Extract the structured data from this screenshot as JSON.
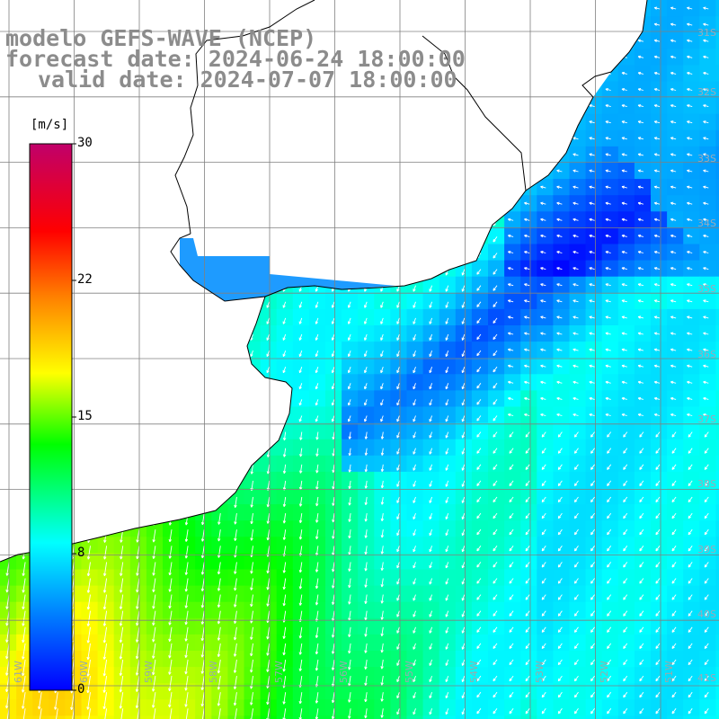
{
  "titles": {
    "line1": "modelo GEFS-WAVE (NCEP)",
    "line2": "forecast date: 2024-06-24 18:00:00",
    "line3": "valid date: 2024-07-07 18:00:00"
  },
  "colorbar": {
    "unit": "[m/s]",
    "ticks": [
      "30",
      "22",
      "15",
      "8",
      "0"
    ],
    "colors": [
      "#0000ff",
      "#00bfff",
      "#00ffff",
      "#00ff00",
      "#ffff00",
      "#ff8000",
      "#ff0000",
      "#c0006a"
    ]
  },
  "lon_labels": [
    "61W",
    "60W",
    "59W",
    "58W",
    "57W",
    "56W",
    "55W",
    "54W",
    "53W",
    "52W",
    "51W"
  ],
  "lat_labels": [
    "31S",
    "32S",
    "33S",
    "34S",
    "35S",
    "36S",
    "37S",
    "38S",
    "39S",
    "40S",
    "41S"
  ],
  "colors": {
    "grid": "#808080",
    "land": "#ffffff",
    "coast": "#000000",
    "arrow": "#ffffff",
    "title": "#8c8c8c"
  }
}
